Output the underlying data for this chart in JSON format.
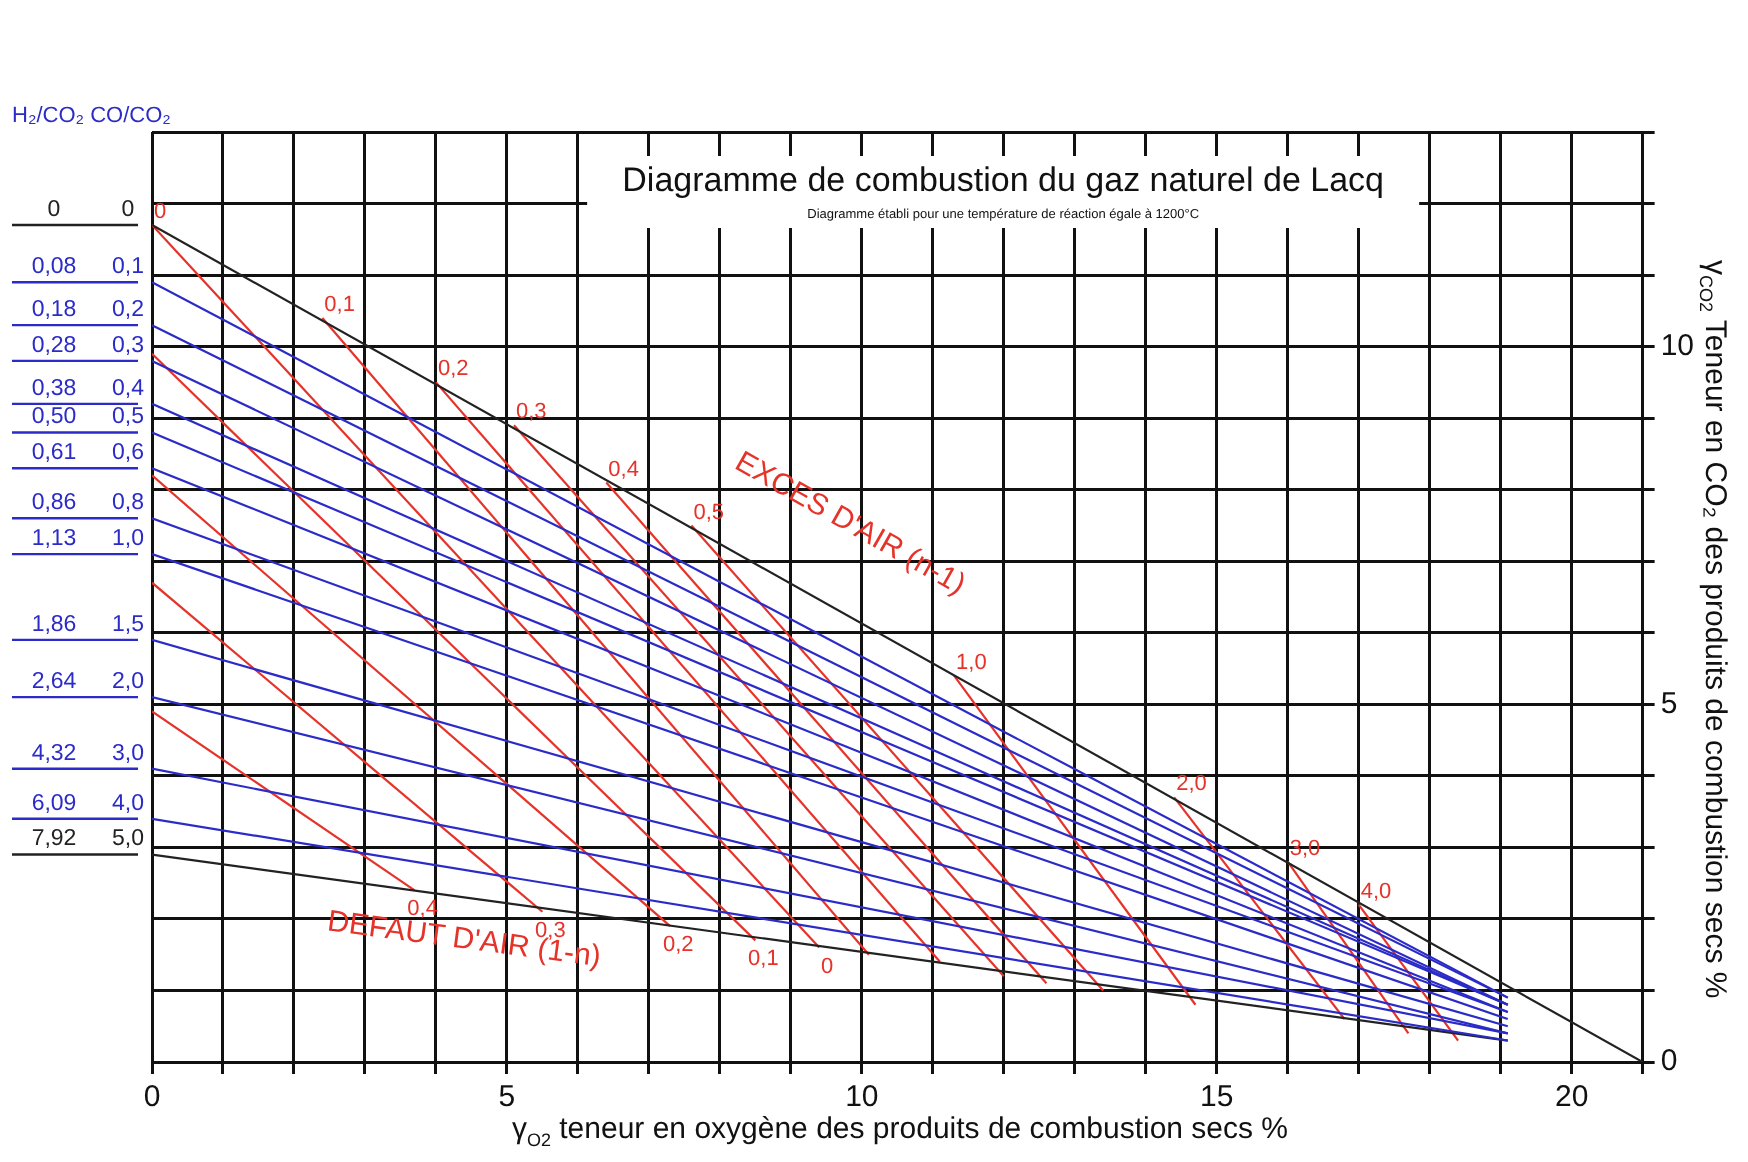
{
  "chart_data": {
    "type": "line",
    "title": "Diagramme de combustion du gaz naturel de Lacq",
    "subtitle": "Diagramme établi pour une température de réaction égale à 1200°C",
    "xlabel": "γ$_{O2}$ teneur en oxygène des produits de combustion secs %",
    "ylabel": "γ$_{CO2}$ Teneur en CO₂ des produits  de combustion secs %",
    "legend_title": "H₂/CO₂ CO/CO₂",
    "xlim": [
      0,
      21
    ],
    "xticks": [
      0,
      {
        "value": 1,
        "label": null
      },
      {
        "value": 2,
        "label": null
      },
      {
        "value": 3,
        "label": null
      },
      {
        "value": 4,
        "label": null
      },
      5,
      {
        "value": 6,
        "label": null
      },
      {
        "value": 7,
        "label": null
      },
      {
        "value": 8,
        "label": null
      },
      {
        "value": 9,
        "label": null
      },
      10,
      {
        "value": 11,
        "label": null
      },
      {
        "value": 12,
        "label": null
      },
      {
        "value": 13,
        "label": null
      },
      {
        "value": 14,
        "label": null
      },
      15,
      {
        "value": 16,
        "label": null
      },
      {
        "value": 17,
        "label": null
      },
      {
        "value": 18,
        "label": null
      },
      {
        "value": 19,
        "label": null
      },
      20,
      {
        "value": 21,
        "label": null
      }
    ],
    "ylim": [
      0,
      13
    ],
    "yticks": [
      0,
      {
        "value": 1,
        "label": null
      },
      {
        "value": 2,
        "label": null
      },
      {
        "value": 3,
        "label": null
      },
      {
        "value": 4,
        "label": null
      },
      5,
      {
        "value": 6,
        "label": null
      },
      {
        "value": 7,
        "label": null
      },
      {
        "value": 8,
        "label": null
      },
      {
        "value": 9,
        "label": null
      },
      10,
      {
        "value": 11,
        "label": null
      },
      {
        "value": 12,
        "label": null
      },
      {
        "value": 13,
        "label": null
      }
    ],
    "grid": true,
    "legend": false,
    "marker": "none",
    "line_style": "solid",
    "series": [
      {
        "name": "0 0",
        "color": "#222222",
        "x": [
          0,
          21
        ],
        "values": [
          11.7,
          0
        ]
      },
      {
        "name": "0,08 0,1",
        "color": "#2b2bc8",
        "x": [
          0,
          19.1
        ],
        "values": [
          10.9,
          0.9
        ]
      },
      {
        "name": "0,18 0,2",
        "color": "#2b2bc8",
        "x": [
          0,
          19.1
        ],
        "values": [
          10.3,
          0.9
        ]
      },
      {
        "name": "0,28 0,3",
        "color": "#2b2bc8",
        "x": [
          0,
          19.1
        ],
        "values": [
          9.8,
          0.8
        ]
      },
      {
        "name": "0,38 0,4",
        "color": "#2b2bc8",
        "x": [
          0,
          19.1
        ],
        "values": [
          9.2,
          0.8
        ]
      },
      {
        "name": "0,50 0,5",
        "color": "#2b2bc8",
        "x": [
          0,
          19.1
        ],
        "values": [
          8.8,
          0.8
        ]
      },
      {
        "name": "0,61 0,6",
        "color": "#2b2bc8",
        "x": [
          0,
          19.1
        ],
        "values": [
          8.3,
          0.7
        ]
      },
      {
        "name": "0,86 0,8",
        "color": "#2b2bc8",
        "x": [
          0,
          19.1
        ],
        "values": [
          7.6,
          0.7
        ]
      },
      {
        "name": "1,13 1,0",
        "color": "#2b2bc8",
        "x": [
          0,
          19.1
        ],
        "values": [
          7.1,
          0.6
        ]
      },
      {
        "name": "1,86 1,5",
        "color": "#2b2bc8",
        "x": [
          0,
          19.1
        ],
        "values": [
          5.9,
          0.5
        ]
      },
      {
        "name": "2,64 2,0",
        "color": "#2b2bc8",
        "x": [
          0,
          19.1
        ],
        "values": [
          5.1,
          0.4
        ]
      },
      {
        "name": "4,32 3,0",
        "color": "#2b2bc8",
        "x": [
          0,
          19.1
        ],
        "values": [
          4.1,
          0.4
        ]
      },
      {
        "name": "6,09 4,0",
        "color": "#2b2bc8",
        "x": [
          0,
          19.1
        ],
        "values": [
          3.4,
          0.3
        ]
      },
      {
        "name": "7,92 5,0",
        "color": "#222222",
        "x": [
          0,
          19.1
        ],
        "values": [
          2.9,
          0.3
        ]
      },
      {
        "color": "#e5332a",
        "x": [
          0,
          9.4
        ],
        "values": [
          11.7,
          1.6
        ]
      },
      {
        "color": "#e5332a",
        "x": [
          0,
          8.5
        ],
        "values": [
          9.9,
          1.7
        ]
      },
      {
        "color": "#e5332a",
        "x": [
          0,
          7.3
        ],
        "values": [
          8.2,
          1.9
        ]
      },
      {
        "color": "#e5332a",
        "x": [
          0,
          5.5
        ],
        "values": [
          6.7,
          2.1
        ]
      },
      {
        "color": "#e5332a",
        "x": [
          0,
          3.7
        ],
        "values": [
          4.9,
          2.4
        ]
      },
      {
        "color": "#e5332a",
        "x": [
          2.4,
          10.1
        ],
        "values": [
          10.4,
          1.5
        ]
      },
      {
        "color": "#e5332a",
        "x": [
          4.0,
          11.1
        ],
        "values": [
          9.5,
          1.4
        ]
      },
      {
        "color": "#e5332a",
        "x": [
          5.1,
          12.0
        ],
        "values": [
          8.9,
          1.2
        ]
      },
      {
        "color": "#e5332a",
        "x": [
          6.4,
          12.6
        ],
        "values": [
          8.1,
          1.1
        ]
      },
      {
        "color": "#e5332a",
        "x": [
          7.6,
          13.4
        ],
        "values": [
          7.5,
          1.0
        ]
      },
      {
        "color": "#e5332a",
        "x": [
          11.3,
          14.7
        ],
        "values": [
          5.4,
          0.8
        ]
      },
      {
        "color": "#e5332a",
        "x": [
          14.4,
          16.8
        ],
        "values": [
          3.7,
          0.6
        ]
      },
      {
        "color": "#e5332a",
        "x": [
          16.0,
          17.7
        ],
        "values": [
          2.8,
          0.4
        ]
      },
      {
        "color": "#e5332a",
        "x": [
          17.0,
          18.4
        ],
        "values": [
          2.2,
          0.3
        ]
      }
    ],
    "annotations": [
      {
        "text": "0",
        "x": 0,
        "y": 11.7
      },
      {
        "text": "0,1",
        "x": 2.4,
        "y": 10.4
      },
      {
        "text": "0,2",
        "x": 4.0,
        "y": 9.5
      },
      {
        "text": "0,3",
        "x": 5.1,
        "y": 8.9
      },
      {
        "text": "0,4",
        "x": 6.4,
        "y": 8.1
      },
      {
        "text": "0,5",
        "x": 7.6,
        "y": 7.5
      },
      {
        "text": "1,0",
        "x": 11.3,
        "y": 5.4
      },
      {
        "text": "2,0",
        "x": 14.4,
        "y": 3.7
      },
      {
        "text": "3,0",
        "x": 16.0,
        "y": 2.8
      },
      {
        "text": "4,0",
        "x": 17.0,
        "y": 2.2
      },
      {
        "text": "0,4",
        "x": 3.7,
        "y": 2.4
      },
      {
        "text": "0,3",
        "x": 5.5,
        "y": 2.1
      },
      {
        "text": "0,2",
        "x": 7.3,
        "y": 1.9
      },
      {
        "text": "0,1",
        "x": 8.5,
        "y": 1.7
      },
      {
        "text": "0",
        "x": 9.4,
        "y": 1.6
      },
      "EXCES D'AIR (n-1)",
      "DEFAUT D'AIR (1-n)"
    ]
  }
}
